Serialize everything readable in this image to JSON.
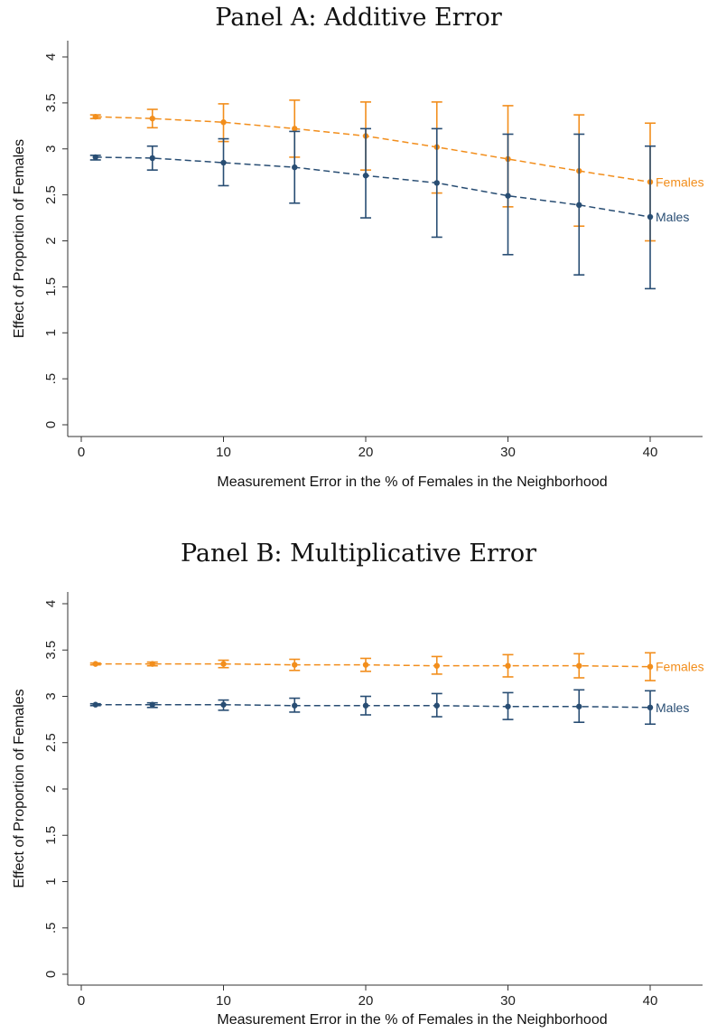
{
  "chart_data": [
    {
      "type": "line",
      "title": "Panel A: Additive Error",
      "xlabel": "Measurement Error in the % of Females in the Neighborhood",
      "ylabel": "Effect of Proportion of Females",
      "xlim": [
        -2,
        45
      ],
      "ylim": [
        -0.1,
        4.1
      ],
      "xticks": [
        0,
        10,
        20,
        30,
        40
      ],
      "yticks": [
        0,
        0.5,
        1,
        1.5,
        2,
        2.5,
        3,
        3.5,
        4
      ],
      "ytick_labels": [
        "0",
        ".5",
        "1",
        "1.5",
        "2",
        "2.5",
        "3",
        "3.5",
        "4"
      ],
      "grid": false,
      "x": [
        1,
        5,
        10,
        15,
        20,
        25,
        30,
        35,
        40
      ],
      "series": [
        {
          "name": "Females",
          "color": "#f28e1c",
          "values": [
            3.35,
            3.33,
            3.29,
            3.22,
            3.14,
            3.02,
            2.89,
            2.76,
            2.64
          ],
          "lower": [
            3.33,
            3.23,
            3.08,
            2.91,
            2.77,
            2.52,
            2.37,
            2.16,
            2.0
          ],
          "upper": [
            3.37,
            3.43,
            3.49,
            3.53,
            3.51,
            3.51,
            3.47,
            3.37,
            3.28
          ]
        },
        {
          "name": "Males",
          "color": "#284d73",
          "values": [
            2.91,
            2.9,
            2.85,
            2.8,
            2.71,
            2.63,
            2.49,
            2.39,
            2.26
          ],
          "lower": [
            2.88,
            2.77,
            2.6,
            2.41,
            2.25,
            2.04,
            1.85,
            1.63,
            1.48
          ],
          "upper": [
            2.93,
            3.03,
            3.11,
            3.19,
            3.22,
            3.22,
            3.16,
            3.16,
            3.03
          ]
        }
      ]
    },
    {
      "type": "line",
      "title": "Panel B: Multiplicative Error",
      "xlabel": "Measurement Error in the % of Females in the Neighborhood",
      "ylabel": "Effect of Proportion of Females",
      "xlim": [
        -2,
        45
      ],
      "ylim": [
        -0.1,
        4.1
      ],
      "xticks": [
        0,
        10,
        20,
        30,
        40
      ],
      "yticks": [
        0,
        0.5,
        1,
        1.5,
        2,
        2.5,
        3,
        3.5,
        4
      ],
      "ytick_labels": [
        "0",
        ".5",
        "1",
        "1.5",
        "2",
        "2.5",
        "3",
        "3.5",
        "4"
      ],
      "grid": false,
      "x": [
        1,
        5,
        10,
        15,
        20,
        25,
        30,
        35,
        40
      ],
      "series": [
        {
          "name": "Females",
          "color": "#f28e1c",
          "values": [
            3.35,
            3.35,
            3.35,
            3.34,
            3.34,
            3.33,
            3.33,
            3.33,
            3.32
          ],
          "lower": [
            3.34,
            3.33,
            3.31,
            3.28,
            3.27,
            3.24,
            3.21,
            3.2,
            3.17
          ],
          "upper": [
            3.36,
            3.37,
            3.39,
            3.4,
            3.41,
            3.43,
            3.45,
            3.46,
            3.47
          ]
        },
        {
          "name": "Males",
          "color": "#284d73",
          "values": [
            2.91,
            2.91,
            2.91,
            2.9,
            2.9,
            2.9,
            2.89,
            2.89,
            2.88
          ],
          "lower": [
            2.9,
            2.88,
            2.85,
            2.83,
            2.8,
            2.78,
            2.75,
            2.72,
            2.7
          ],
          "upper": [
            2.92,
            2.93,
            2.96,
            2.98,
            3.0,
            3.03,
            3.04,
            3.07,
            3.06
          ]
        }
      ]
    }
  ]
}
